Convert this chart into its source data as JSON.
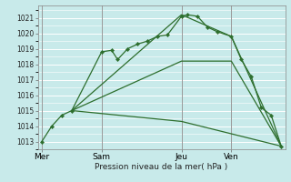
{
  "title": "",
  "xlabel": "Pression niveau de la mer( hPa )",
  "bg_color": "#c8eaea",
  "grid_color": "#ffffff",
  "line_color": "#2d6e2d",
  "ylim": [
    1012.5,
    1021.8
  ],
  "yticks": [
    1013,
    1014,
    1015,
    1016,
    1017,
    1018,
    1019,
    1020,
    1021
  ],
  "day_labels": [
    "Mer",
    "Sam",
    "Jeu",
    "Ven"
  ],
  "day_positions": [
    0,
    3.0,
    7.0,
    9.5
  ],
  "xlim": [
    -0.2,
    12.2
  ],
  "lines": [
    {
      "x": [
        0,
        0.5,
        1.0,
        1.5,
        3.0,
        3.5,
        3.8,
        4.3,
        4.8,
        5.3,
        5.8,
        6.3,
        7.0,
        7.3,
        7.8,
        8.3,
        8.8,
        9.5,
        10.0,
        10.5,
        11.0,
        11.5,
        12.0
      ],
      "y": [
        1013.0,
        1014.0,
        1014.7,
        1015.0,
        1018.8,
        1018.9,
        1018.3,
        1019.0,
        1019.3,
        1019.5,
        1019.8,
        1019.9,
        1021.1,
        1021.2,
        1021.1,
        1020.4,
        1020.1,
        1019.8,
        1018.3,
        1017.2,
        1015.2,
        1014.7,
        1012.7
      ],
      "marker": true
    },
    {
      "x": [
        1.5,
        7.0,
        9.5,
        12.0
      ],
      "y": [
        1015.0,
        1021.2,
        1019.8,
        1012.7
      ],
      "marker": false
    },
    {
      "x": [
        1.5,
        7.0,
        9.5,
        12.0
      ],
      "y": [
        1015.0,
        1018.2,
        1018.2,
        1012.7
      ],
      "marker": false
    },
    {
      "x": [
        1.5,
        7.0,
        9.5,
        12.0
      ],
      "y": [
        1015.0,
        1014.3,
        1013.5,
        1012.7
      ],
      "marker": false
    }
  ]
}
